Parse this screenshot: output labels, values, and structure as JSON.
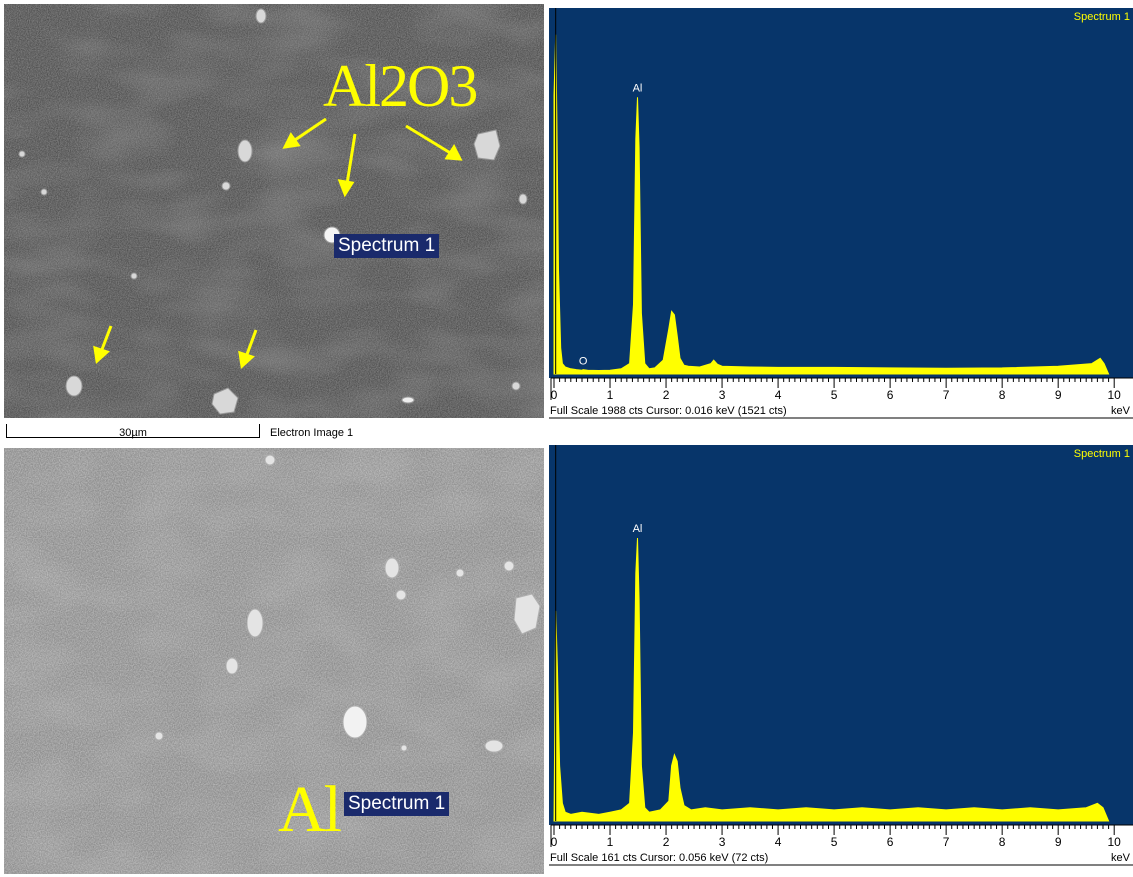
{
  "sem_top": {
    "label_big": "Al2O3",
    "spectrum_label": "Spectrum 1",
    "scale_bar": "30µm",
    "image_label": "Electron Image 1"
  },
  "sem_bottom": {
    "label_big": "Al",
    "spectrum_label": "Spectrum 1"
  },
  "colors": {
    "spectrum_bg": "#07356a",
    "spectrum_fill": "#ffff00",
    "annotation": "#ffff00",
    "label_bg": "#1a2a6c"
  },
  "chart_data": [
    {
      "type": "area",
      "title": "Spectrum 1",
      "xlabel": "keV",
      "xlim": [
        0,
        10.3
      ],
      "ylim": [
        0,
        1988
      ],
      "x_ticks": [
        "0",
        "1",
        "2",
        "3",
        "4",
        "5",
        "6",
        "7",
        "8",
        "9",
        "10"
      ],
      "footer": "Full Scale 1988 cts  Cursor: 0.016 keV (1521 cts)",
      "peak_labels": [
        {
          "label": "Al",
          "x": 1.49,
          "y": 1590
        },
        {
          "label": "O",
          "x": 0.52,
          "y": 20
        }
      ],
      "series": [
        {
          "x": [
            0.0,
            0.03,
            0.05,
            0.08,
            0.12,
            0.15,
            0.2,
            0.3,
            0.4,
            0.5,
            0.52,
            0.6,
            0.8,
            1.0,
            1.2,
            1.35,
            1.42,
            1.46,
            1.49,
            1.52,
            1.56,
            1.62,
            1.7,
            1.8,
            1.95,
            2.05,
            2.1,
            2.15,
            2.2,
            2.25,
            2.32,
            2.4,
            2.6,
            2.8,
            2.85,
            2.92,
            3.0,
            3.5,
            4.0,
            5.0,
            6.0,
            7.0,
            8.0,
            9.0,
            9.6,
            9.75,
            9.82,
            9.9
          ],
          "values": [
            1600,
            1950,
            1500,
            600,
            150,
            60,
            40,
            30,
            25,
            22,
            25,
            22,
            20,
            22,
            30,
            60,
            400,
            1350,
            1590,
            1300,
            350,
            60,
            30,
            35,
            80,
            260,
            360,
            340,
            220,
            90,
            50,
            45,
            40,
            60,
            80,
            55,
            45,
            40,
            38,
            38,
            35,
            33,
            35,
            45,
            60,
            90,
            60,
            0
          ]
        }
      ]
    },
    {
      "type": "area",
      "title": "Spectrum 1",
      "xlabel": "keV",
      "xlim": [
        0,
        10.3
      ],
      "ylim": [
        0,
        161
      ],
      "x_ticks": [
        "0",
        "1",
        "2",
        "3",
        "4",
        "5",
        "6",
        "7",
        "8",
        "9",
        "10"
      ],
      "footer": "Full Scale 161 cts  Cursor: 0.056 keV (72 cts)",
      "peak_labels": [
        {
          "label": "Al",
          "x": 1.49,
          "y": 128
        }
      ],
      "series": [
        {
          "x": [
            0.0,
            0.03,
            0.06,
            0.1,
            0.15,
            0.2,
            0.3,
            0.5,
            0.8,
            1.0,
            1.2,
            1.35,
            1.42,
            1.46,
            1.49,
            1.52,
            1.56,
            1.62,
            1.7,
            1.9,
            2.05,
            2.1,
            2.15,
            2.2,
            2.25,
            2.32,
            2.45,
            2.7,
            3.0,
            3.5,
            4.0,
            4.5,
            5.0,
            5.5,
            6.0,
            6.5,
            7.0,
            7.5,
            8.0,
            8.5,
            9.0,
            9.5,
            9.7,
            9.8,
            9.9
          ],
          "values": [
            0,
            95,
            70,
            25,
            8,
            4,
            3,
            4,
            3,
            4,
            5,
            8,
            40,
            112,
            128,
            100,
            25,
            6,
            4,
            5,
            9,
            25,
            30,
            27,
            15,
            7,
            5,
            6,
            5,
            6,
            5,
            6,
            5,
            6,
            5,
            6,
            5,
            6,
            5,
            6,
            5,
            6,
            8,
            6,
            0
          ]
        }
      ]
    }
  ]
}
